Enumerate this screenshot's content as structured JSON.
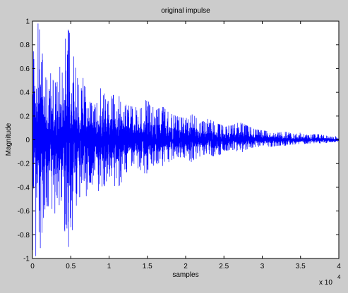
{
  "chart_data": {
    "type": "line",
    "title": "original impulse",
    "xlabel": "samples",
    "ylabel": "Magnitude",
    "x_exponent_label": "x 10",
    "x_exponent_power": "4",
    "xlim": [
      0,
      40000
    ],
    "ylim": [
      -1,
      1
    ],
    "grid": false,
    "x_ticks": [
      0,
      5000,
      10000,
      15000,
      20000,
      25000,
      30000,
      35000,
      40000
    ],
    "x_tick_labels": [
      "0",
      "0.5",
      "1",
      "1.5",
      "2",
      "2.5",
      "3",
      "3.5",
      "4"
    ],
    "y_ticks": [
      -1,
      -0.8,
      -0.6,
      -0.4,
      -0.2,
      0,
      0.2,
      0.4,
      0.6,
      0.8,
      1
    ],
    "y_tick_labels": [
      "-1",
      "-0.8",
      "-0.6",
      "-0.4",
      "-0.2",
      "0",
      "0.2",
      "0.4",
      "0.6",
      "0.8",
      "1"
    ],
    "series": [
      {
        "color": "#0000ff",
        "x": [
          0,
          500,
          1000,
          1500,
          2000,
          2500,
          3000,
          3500,
          4000,
          4500,
          5000,
          5500,
          6000,
          6500,
          7000,
          7500,
          8000,
          9000,
          10000,
          11000,
          12000,
          13000,
          14000,
          15000,
          16000,
          17000,
          18000,
          19000,
          20000,
          21000,
          22000,
          23000,
          24000,
          25000,
          26000,
          27000,
          28000,
          29000,
          30000,
          31000,
          32000,
          33000,
          34000,
          35000,
          36000,
          37000,
          38000,
          39000,
          40000
        ],
        "upper_envelope": [
          0.98,
          0.98,
          0.98,
          0.55,
          0.5,
          0.58,
          0.48,
          0.6,
          0.7,
          0.95,
          0.88,
          0.65,
          0.48,
          0.55,
          0.42,
          0.32,
          0.3,
          0.45,
          0.35,
          0.4,
          0.3,
          0.28,
          0.27,
          0.35,
          0.25,
          0.28,
          0.22,
          0.2,
          0.18,
          0.22,
          0.15,
          0.18,
          0.14,
          0.12,
          0.12,
          0.15,
          0.12,
          0.09,
          0.08,
          0.07,
          0.06,
          0.07,
          0.05,
          0.06,
          0.04,
          0.05,
          0.04,
          0.03,
          0.03
        ],
        "lower_envelope": [
          -0.98,
          -0.98,
          -0.98,
          -0.6,
          -0.55,
          -0.75,
          -0.6,
          -0.55,
          -0.65,
          -0.92,
          -0.88,
          -0.6,
          -0.5,
          -0.45,
          -0.48,
          -0.35,
          -0.4,
          -0.45,
          -0.3,
          -0.42,
          -0.32,
          -0.22,
          -0.25,
          -0.3,
          -0.2,
          -0.22,
          -0.18,
          -0.15,
          -0.15,
          -0.2,
          -0.13,
          -0.12,
          -0.15,
          -0.1,
          -0.08,
          -0.12,
          -0.08,
          -0.06,
          -0.06,
          -0.06,
          -0.05,
          -0.05,
          -0.04,
          -0.04,
          -0.03,
          -0.03,
          -0.03,
          -0.02,
          -0.02
        ]
      }
    ]
  }
}
